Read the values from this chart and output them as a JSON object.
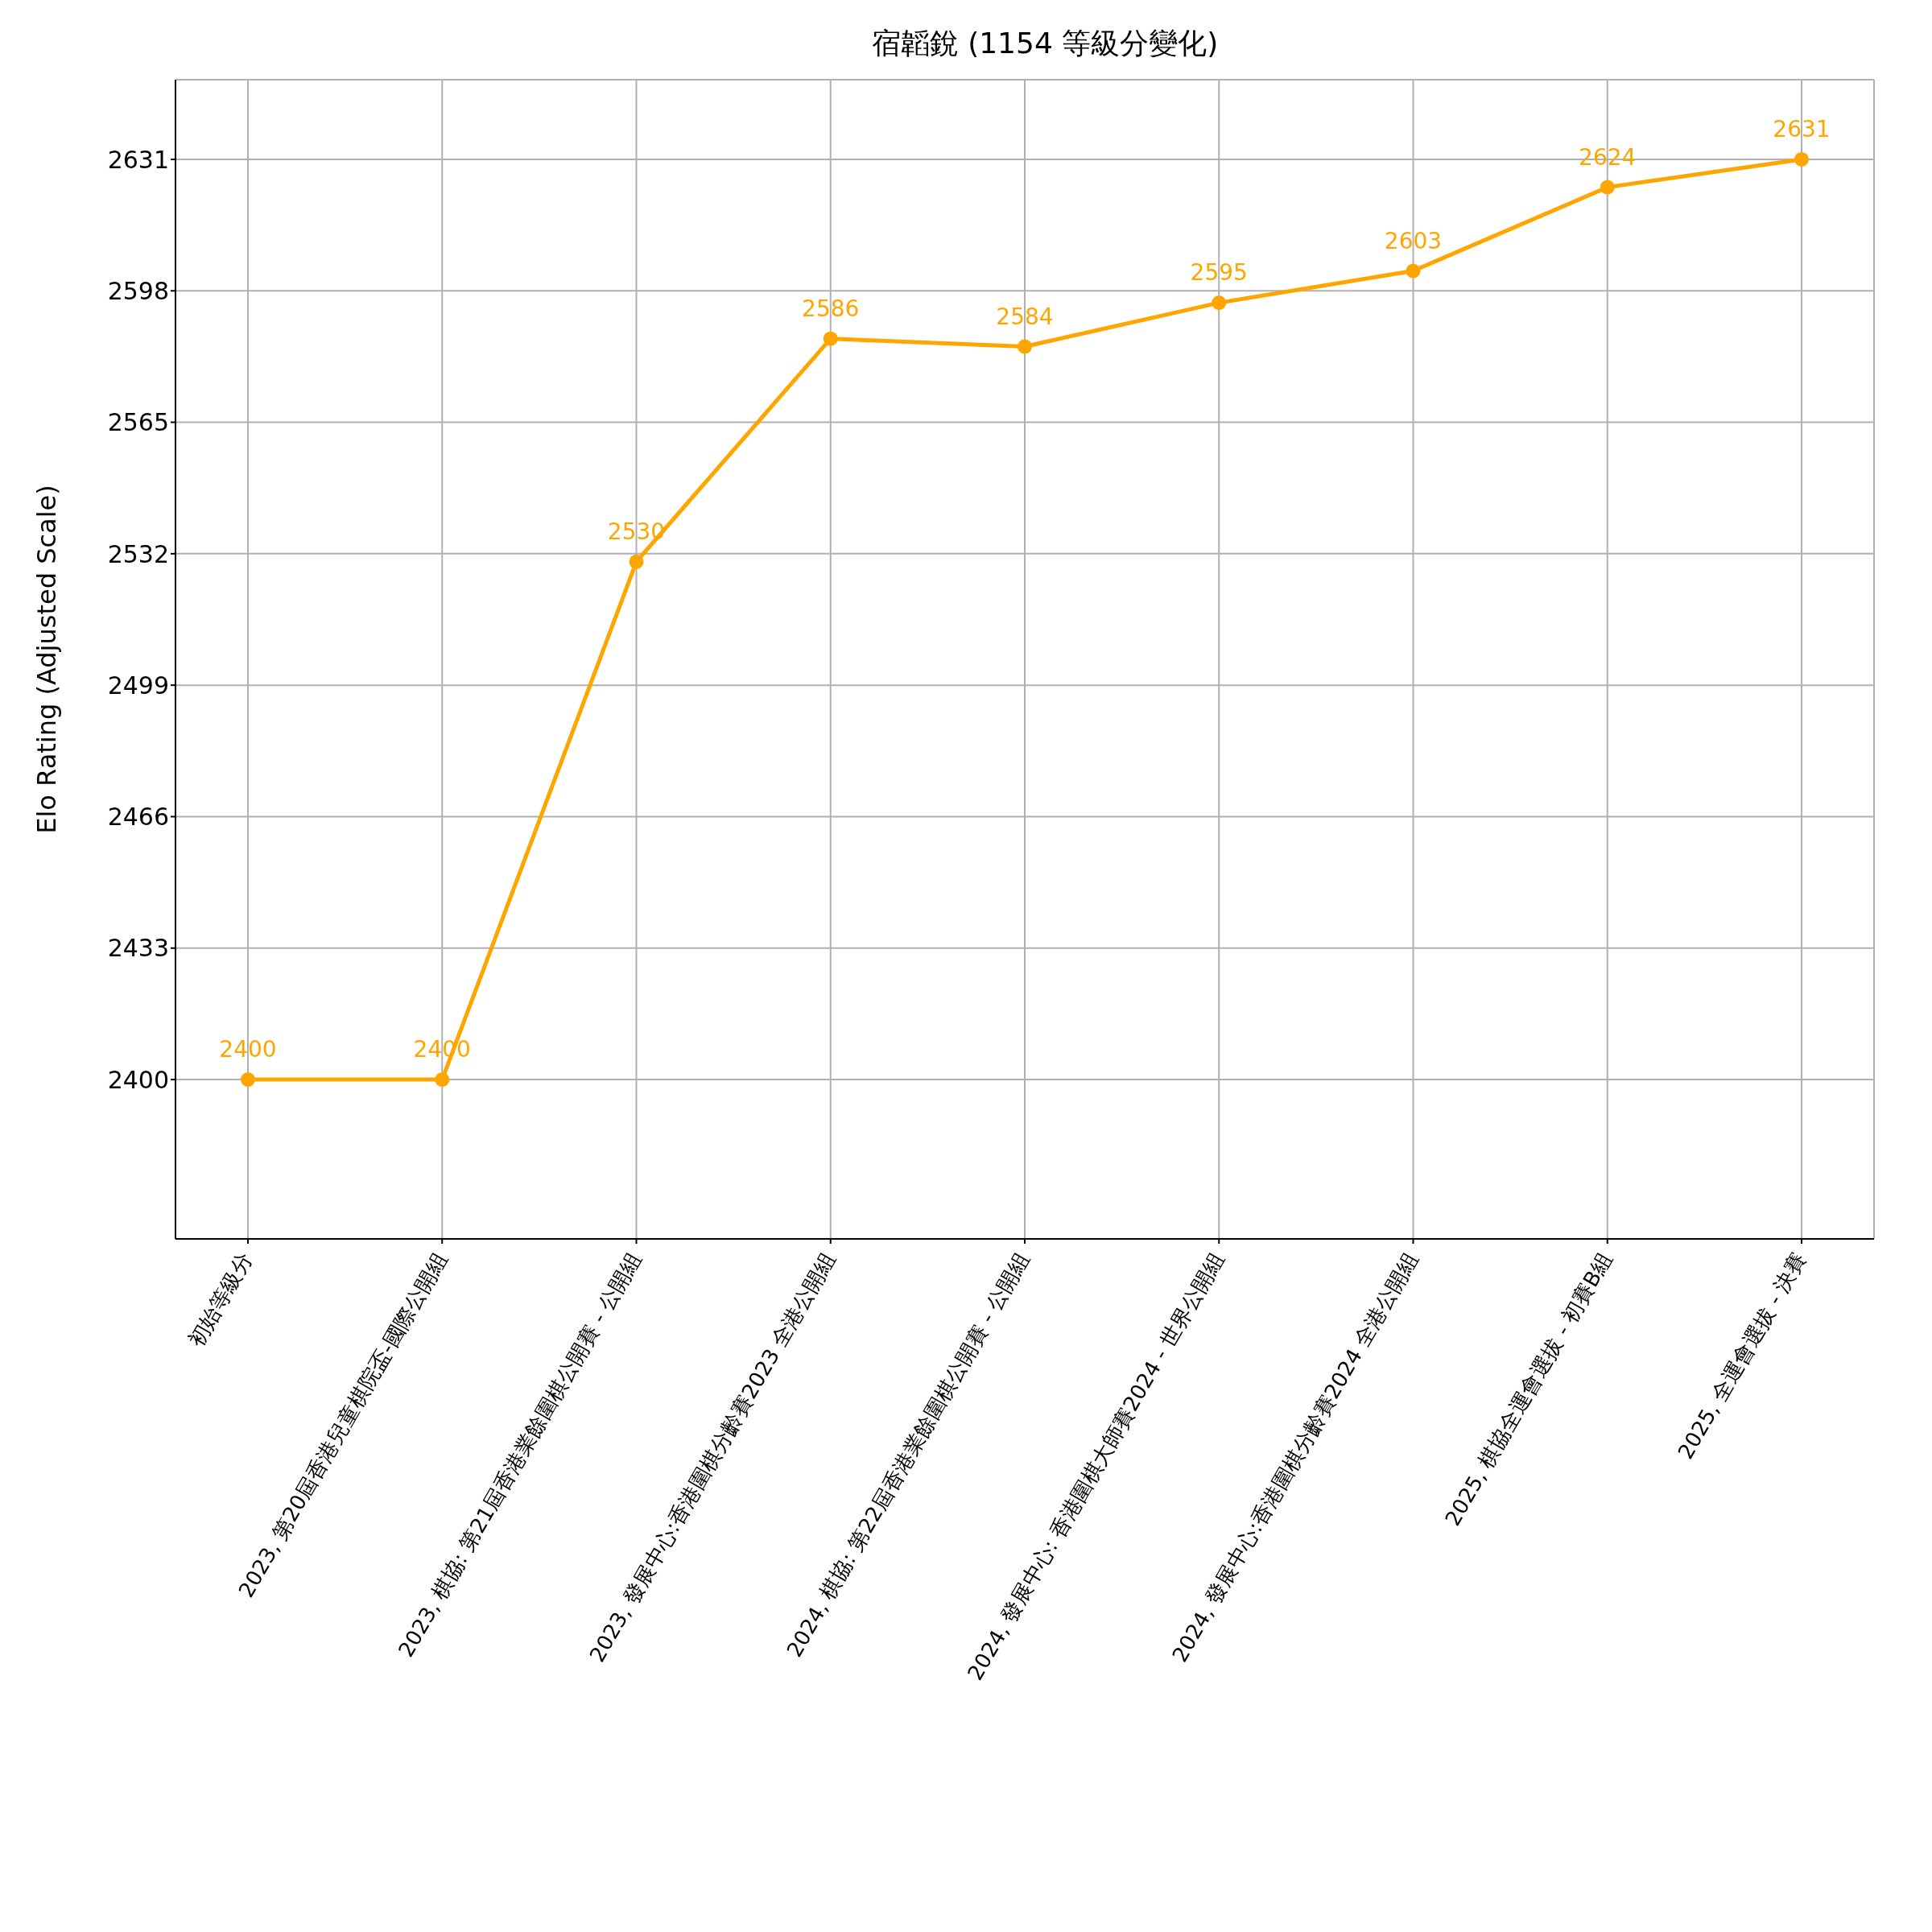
{
  "chart_data": {
    "type": "line",
    "title": "宿韜銳 (1154 等級分變化)",
    "ylabel": "Elo Rating (Adjusted Scale)",
    "categories": [
      "初始等級分",
      "2023, 第20屆香港兒童棋院盃-國際公開組",
      "2023, 棋協: 第21屆香港業餘圍棋公開賽 - 公開組",
      "2023, 發展中心:香港圍棋分齡賽2023 全港公開組",
      "2024, 棋協: 第22屆香港業餘圍棋公開賽 - 公開組",
      "2024, 發展中心: 香港圍棋大師賽2024 - 世界公開組",
      "2024, 發展中心:香港圍棋分齡賽2024 全港公開組",
      "2025, 棋協全運會選拔 - 初賽B組",
      "2025, 全運會選拔 - 決賽"
    ],
    "series": [
      {
        "color": "#ffa500",
        "values": [
          2400,
          2400,
          2530,
          2586,
          2584,
          2595,
          2603,
          2624,
          2631
        ]
      }
    ],
    "ylim": [
      2360,
      2651
    ],
    "yticks": [
      2400,
      2433,
      2466,
      2499,
      2532,
      2565,
      2598,
      2631
    ],
    "grid": true,
    "marker": "circle",
    "line_style": "solid",
    "data_labels": true
  }
}
